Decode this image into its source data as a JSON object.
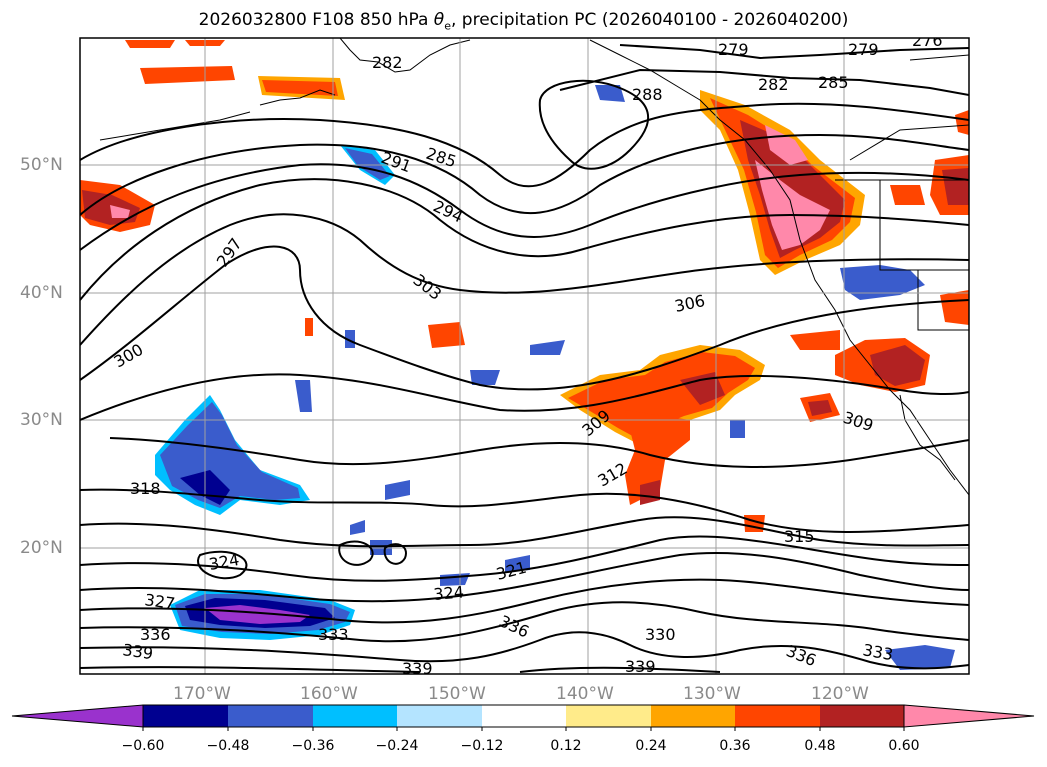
{
  "title": {
    "prefix": "2026032800 F108 850 hPa ",
    "symbol": "θ",
    "symbol_sub": "e",
    "suffix": ", precipitation PC (2026040100 - 2026040200)"
  },
  "axes": {
    "lat_labels": [
      "50°N",
      "40°N",
      "30°N",
      "20°N"
    ],
    "lon_labels": [
      "170°W",
      "160°W",
      "150°W",
      "140°W",
      "130°W",
      "120°W"
    ]
  },
  "contour_labels": [
    "279",
    "279",
    "276",
    "282",
    "285",
    "285",
    "288",
    "282",
    "291",
    "294",
    "297",
    "300",
    "303",
    "306",
    "309",
    "309",
    "312",
    "315",
    "318",
    "324",
    "321",
    "324",
    "327",
    "336",
    "333",
    "336",
    "330",
    "339",
    "339",
    "339",
    "333",
    "336"
  ],
  "colorbar": {
    "tick_labels": [
      "−0.60",
      "−0.48",
      "−0.36",
      "−0.24",
      "−0.12",
      "0.12",
      "0.24",
      "0.36",
      "0.48",
      "0.60"
    ],
    "colors": [
      "#9a32cd",
      "#000090",
      "#3a5ccc",
      "#00bfff",
      "#b4e4ff",
      "#ffffff",
      "#ffeb8a",
      "#ffa500",
      "#ff4500",
      "#b22222",
      "#ff88aa"
    ]
  },
  "colors": {
    "contour": "#000000",
    "grid": "#a0a0a0",
    "axis_label": "#8a8a8a"
  }
}
